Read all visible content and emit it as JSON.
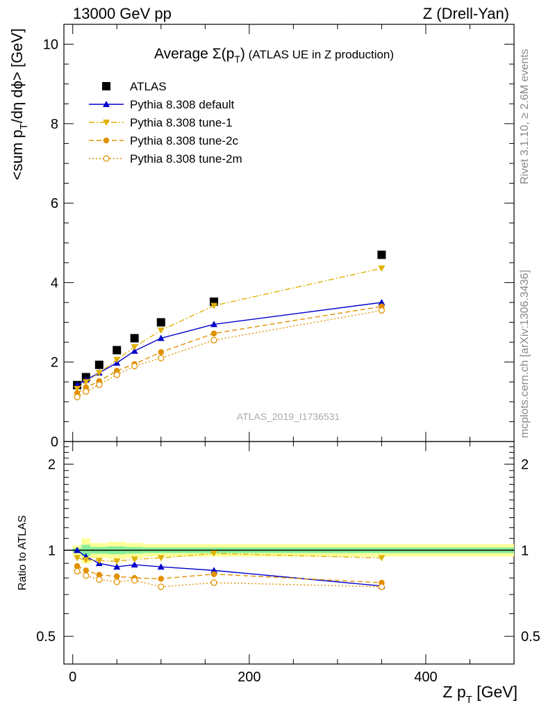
{
  "header": {
    "left": "13000 GeV pp",
    "right": "Z (Drell-Yan)"
  },
  "plot_title": {
    "prefix": "Average ",
    "sigma": "Σ(p",
    "sub": "T",
    "suffix": ")",
    "rest": " (ATLAS UE in Z production)"
  },
  "watermark": "ATLAS_2019_I1736531",
  "side_texts": {
    "rivet": "Rivet 3.1.10, ≥ 2.6M events",
    "mcplots": "mcplots.cern.ch [arXiv:1306.3436]"
  },
  "axes": {
    "ylabel_main": "<sum p",
    "ylabel_main_sub": "T",
    "ylabel_main_rest": "/dη dϕ> [GeV]",
    "ylabel_ratio": "Ratio to ATLAS",
    "xlabel": "Z p",
    "xlabel_sub": "T",
    "xlabel_rest": " [GeV]",
    "main_yticks": [
      "0",
      "2",
      "4",
      "6",
      "8",
      "10"
    ],
    "ratio_yticks": [
      "0.5",
      "1",
      "2"
    ],
    "xticks": [
      "0",
      "200",
      "400"
    ]
  },
  "chart_data": {
    "type": "scatter",
    "xlim": [
      -10,
      500
    ],
    "main_ylim": [
      0,
      10.5
    ],
    "ratio_ylim": [
      0.4,
      2.4
    ],
    "ratio_log": true,
    "x": [
      5,
      15,
      30,
      50,
      70,
      100,
      160,
      350
    ],
    "x_bins": [
      [
        0,
        10
      ],
      [
        10,
        20
      ],
      [
        20,
        40
      ],
      [
        40,
        60
      ],
      [
        60,
        80
      ],
      [
        80,
        120
      ],
      [
        120,
        200
      ],
      [
        200,
        500
      ]
    ],
    "series": [
      {
        "name": "ATLAS",
        "color": "#000000",
        "style": "data",
        "values": [
          1.42,
          1.62,
          1.93,
          2.3,
          2.6,
          3.0,
          3.52,
          4.7
        ]
      },
      {
        "name": "Pythia 8.308 default",
        "color": "#0000cc",
        "style": "solid",
        "values": [
          1.42,
          1.55,
          1.73,
          1.98,
          2.28,
          2.6,
          2.95,
          3.5
        ],
        "ratio": [
          1.0,
          0.95,
          0.9,
          0.875,
          0.89,
          0.875,
          0.85,
          0.75
        ]
      },
      {
        "name": "Pythia 8.308 tune-1",
        "color": "#e0b000",
        "style": "dashdot",
        "values": [
          1.33,
          1.5,
          1.73,
          2.06,
          2.38,
          2.8,
          3.42,
          4.36
        ],
        "ratio": [
          0.94,
          0.925,
          0.92,
          0.915,
          0.93,
          0.94,
          0.975,
          0.94
        ]
      },
      {
        "name": "Pythia 8.308 tune-2c",
        "color": "#e09000",
        "style": "dashed",
        "values": [
          1.22,
          1.36,
          1.52,
          1.78,
          1.95,
          2.25,
          2.72,
          3.4
        ],
        "ratio": [
          0.88,
          0.85,
          0.82,
          0.81,
          0.8,
          0.795,
          0.825,
          0.77
        ]
      },
      {
        "name": "Pythia 8.308 tune-2m",
        "color": "#e09000",
        "style": "dotted",
        "values": [
          1.12,
          1.26,
          1.43,
          1.68,
          1.9,
          2.1,
          2.55,
          3.3
        ],
        "ratio": [
          0.845,
          0.815,
          0.79,
          0.775,
          0.785,
          0.745,
          0.77,
          0.745
        ]
      }
    ]
  }
}
